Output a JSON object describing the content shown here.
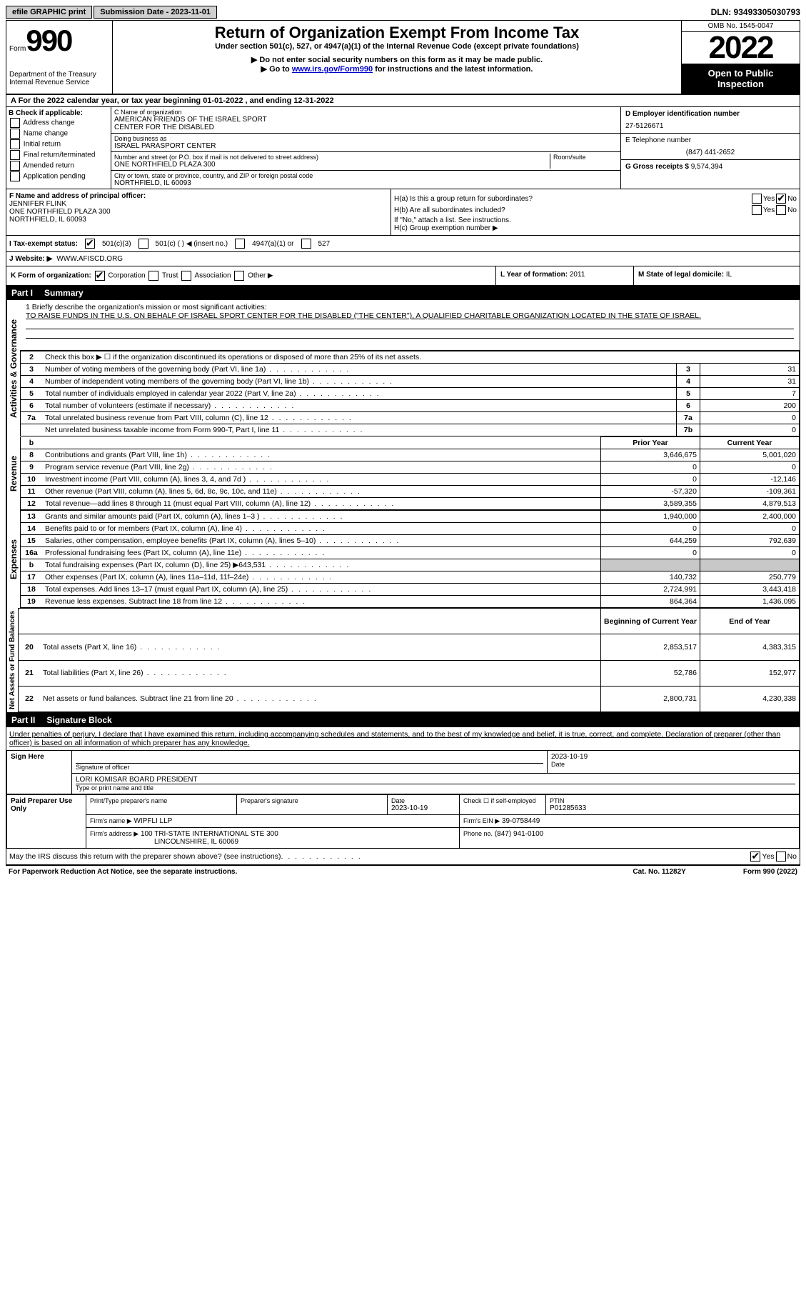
{
  "top": {
    "efile": "efile GRAPHIC print",
    "sub_label": "Submission Date - 2023-11-01",
    "dln": "DLN: 93493305030793"
  },
  "header": {
    "form_word": "Form",
    "form_no": "990",
    "dept": "Department of the Treasury",
    "irs": "Internal Revenue Service",
    "title": "Return of Organization Exempt From Income Tax",
    "sub1": "Under section 501(c), 527, or 4947(a)(1) of the Internal Revenue Code (except private foundations)",
    "sub2": "▶ Do not enter social security numbers on this form as it may be made public.",
    "sub3_pre": "▶ Go to ",
    "sub3_link": "www.irs.gov/Form990",
    "sub3_post": " for instructions and the latest information.",
    "omb": "OMB No. 1545-0047",
    "year": "2022",
    "open": "Open to Public Inspection"
  },
  "rowA": "A  For the 2022 calendar year, or tax year beginning 01-01-2022     , and ending 12-31-2022",
  "colB": {
    "label": "B Check if applicable:",
    "opts": [
      "Address change",
      "Name change",
      "Initial return",
      "Final return/terminated",
      "Amended return",
      "Application pending"
    ]
  },
  "colC": {
    "name_lbl": "C Name of organization",
    "name1": "AMERICAN FRIENDS OF THE ISRAEL SPORT",
    "name2": "CENTER FOR THE DISABLED",
    "dba_lbl": "Doing business as",
    "dba": "ISRAEL PARASPORT CENTER",
    "addr_lbl": "Number and street (or P.O. box if mail is not delivered to street address)",
    "room_lbl": "Room/suite",
    "addr": "ONE NORTHFIELD PLAZA 300",
    "city_lbl": "City or town, state or province, country, and ZIP or foreign postal code",
    "city": "NORTHFIELD, IL  60093"
  },
  "colD": {
    "ein_lbl": "D Employer identification number",
    "ein": "27-5126671",
    "tel_lbl": "E Telephone number",
    "tel": "(847) 441-2652",
    "gross_lbl": "G Gross receipts $",
    "gross": "9,574,394"
  },
  "colF": {
    "label": "F  Name and address of principal officer:",
    "name": "JENNIFER FLINK",
    "addr1": "ONE NORTHFIELD PLAZA 300",
    "addr2": "NORTHFIELD, IL  60093"
  },
  "colH": {
    "ha": "H(a)  Is this a group return for subordinates?",
    "hb": "H(b)  Are all subordinates included?",
    "hb_note": "If \"No,\" attach a list. See instructions.",
    "hc": "H(c)  Group exemption number ▶"
  },
  "taxI": {
    "label": "I   Tax-exempt status:",
    "o1": "501(c)(3)",
    "o2": "501(c) (  ) ◀ (insert no.)",
    "o3": "4947(a)(1) or",
    "o4": "527"
  },
  "rowJ": {
    "label": "J   Website: ▶",
    "val": "WWW.AFISCD.ORG"
  },
  "rowK": {
    "label": "K Form of organization:",
    "opts": [
      "Corporation",
      "Trust",
      "Association",
      "Other ▶"
    ],
    "l_label": "L Year of formation:",
    "l_val": "2011",
    "m_label": "M State of legal domicile:",
    "m_val": "IL"
  },
  "part1": {
    "pn": "Part I",
    "title": "Summary"
  },
  "summary": {
    "q1": "1   Briefly describe the organization's mission or most significant activities:",
    "mission": "TO RAISE FUNDS IN THE U.S. ON BEHALF OF ISRAEL SPORT CENTER FOR THE DISABLED (\"THE CENTER\"), A QUALIFIED CHARITABLE ORGANIZATION LOCATED IN THE STATE OF ISRAEL.",
    "q2": "Check this box ▶ ☐  if the organization discontinued its operations or disposed of more than 25% of its net assets.",
    "lines_simple": [
      {
        "n": "3",
        "d": "Number of voting members of the governing body (Part VI, line 1a)",
        "lbl": "3",
        "v": "31"
      },
      {
        "n": "4",
        "d": "Number of independent voting members of the governing body (Part VI, line 1b)",
        "lbl": "4",
        "v": "31"
      },
      {
        "n": "5",
        "d": "Total number of individuals employed in calendar year 2022 (Part V, line 2a)",
        "lbl": "5",
        "v": "7"
      },
      {
        "n": "6",
        "d": "Total number of volunteers (estimate if necessary)",
        "lbl": "6",
        "v": "200"
      },
      {
        "n": "7a",
        "d": "Total unrelated business revenue from Part VIII, column (C), line 12",
        "lbl": "7a",
        "v": "0"
      },
      {
        "n": "",
        "d": "Net unrelated business taxable income from Form 990-T, Part I, line 11",
        "lbl": "7b",
        "v": "0"
      }
    ],
    "hdr_prior": "Prior Year",
    "hdr_curr": "Current Year",
    "revenue": [
      {
        "n": "8",
        "d": "Contributions and grants (Part VIII, line 1h)",
        "p": "3,646,675",
        "c": "5,001,020"
      },
      {
        "n": "9",
        "d": "Program service revenue (Part VIII, line 2g)",
        "p": "0",
        "c": "0"
      },
      {
        "n": "10",
        "d": "Investment income (Part VIII, column (A), lines 3, 4, and 7d )",
        "p": "0",
        "c": "-12,146"
      },
      {
        "n": "11",
        "d": "Other revenue (Part VIII, column (A), lines 5, 6d, 8c, 9c, 10c, and 11e)",
        "p": "-57,320",
        "c": "-109,361"
      },
      {
        "n": "12",
        "d": "Total revenue—add lines 8 through 11 (must equal Part VIII, column (A), line 12)",
        "p": "3,589,355",
        "c": "4,879,513"
      }
    ],
    "expenses": [
      {
        "n": "13",
        "d": "Grants and similar amounts paid (Part IX, column (A), lines 1–3 )",
        "p": "1,940,000",
        "c": "2,400,000"
      },
      {
        "n": "14",
        "d": "Benefits paid to or for members (Part IX, column (A), line 4)",
        "p": "0",
        "c": "0"
      },
      {
        "n": "15",
        "d": "Salaries, other compensation, employee benefits (Part IX, column (A), lines 5–10)",
        "p": "644,259",
        "c": "792,639"
      },
      {
        "n": "16a",
        "d": "Professional fundraising fees (Part IX, column (A), line 11e)",
        "p": "0",
        "c": "0"
      },
      {
        "n": "b",
        "d": "Total fundraising expenses (Part IX, column (D), line 25) ▶643,531",
        "p": "gray",
        "c": "gray"
      },
      {
        "n": "17",
        "d": "Other expenses (Part IX, column (A), lines 11a–11d, 11f–24e)",
        "p": "140,732",
        "c": "250,779"
      },
      {
        "n": "18",
        "d": "Total expenses. Add lines 13–17 (must equal Part IX, column (A), line 25)",
        "p": "2,724,991",
        "c": "3,443,418"
      },
      {
        "n": "19",
        "d": "Revenue less expenses. Subtract line 18 from line 12",
        "p": "864,364",
        "c": "1,436,095"
      }
    ],
    "hdr_beg": "Beginning of Current Year",
    "hdr_end": "End of Year",
    "balances": [
      {
        "n": "20",
        "d": "Total assets (Part X, line 16)",
        "p": "2,853,517",
        "c": "4,383,315"
      },
      {
        "n": "21",
        "d": "Total liabilities (Part X, line 26)",
        "p": "52,786",
        "c": "152,977"
      },
      {
        "n": "22",
        "d": "Net assets or fund balances. Subtract line 21 from line 20",
        "p": "2,800,731",
        "c": "4,230,338"
      }
    ],
    "vert_ag": "Activities & Governance",
    "vert_rev": "Revenue",
    "vert_exp": "Expenses",
    "vert_na": "Net Assets or Fund Balances"
  },
  "part2": {
    "pn": "Part II",
    "title": "Signature Block",
    "intro": "Under penalties of perjury, I declare that I have examined this return, including accompanying schedules and statements, and to the best of my knowledge and belief, it is true, correct, and complete. Declaration of preparer (other than officer) is based on all information of which preparer has any knowledge.",
    "sign_here": "Sign Here",
    "sig_officer": "Signature of officer",
    "sig_date": "2023-10-19",
    "sig_name": "LORI KOMISAR  BOARD PRESIDENT",
    "sig_type": "Type or print name and title",
    "paid": "Paid Preparer Use Only",
    "prep_name_lbl": "Print/Type preparer's name",
    "prep_sig_lbl": "Preparer's signature",
    "date_lbl": "Date",
    "date": "2023-10-19",
    "check_lbl": "Check ☐ if self-employed",
    "ptin_lbl": "PTIN",
    "ptin": "P01285633",
    "firm_name_lbl": "Firm's name    ▶",
    "firm_name": "WIPFLI LLP",
    "firm_ein_lbl": "Firm's EIN ▶",
    "firm_ein": "39-0758449",
    "firm_addr_lbl": "Firm's address ▶",
    "firm_addr1": "100 TRI-STATE INTERNATIONAL STE 300",
    "firm_addr2": "LINCOLNSHIRE, IL  60069",
    "phone_lbl": "Phone no.",
    "phone": "(847) 941-0100",
    "discuss": "May the IRS discuss this return with the preparer shown above? (see instructions)"
  },
  "footer": {
    "left": "For Paperwork Reduction Act Notice, see the separate instructions.",
    "mid": "Cat. No. 11282Y",
    "right": "Form 990 (2022)"
  }
}
